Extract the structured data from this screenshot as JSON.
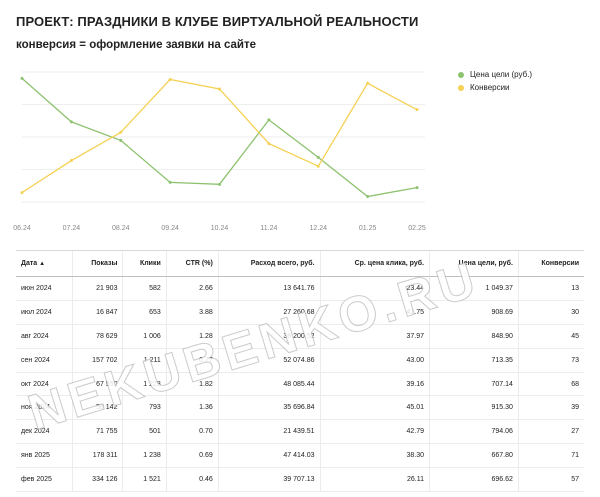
{
  "header": {
    "title": "ПРОЕКТ: ПРАЗДНИКИ В КЛУБЕ ВИРТУАЛЬНОЙ РЕАЛЬНОСТИ",
    "subtitle": "конверсия = оформление заявки на сайте"
  },
  "chart_data": {
    "type": "line",
    "categories": [
      "06.24",
      "07.24",
      "08.24",
      "09.24",
      "10.24",
      "11.24",
      "12.24",
      "01.25",
      "02.25"
    ],
    "series": [
      {
        "name": "Цена цели (руб.)",
        "color": "#8dc26f",
        "values": [
          1049.37,
          908.69,
          848.9,
          713.35,
          707.14,
          915.3,
          794.06,
          667.8,
          696.62
        ]
      },
      {
        "name": "Конверсии",
        "color": "#f5d155",
        "values": [
          13,
          30,
          45,
          73,
          68,
          39,
          27,
          71,
          57
        ]
      }
    ],
    "legend_position": "top-right",
    "grid": true
  },
  "table": {
    "columns": [
      "Дата",
      "Показы",
      "Клики",
      "CTR (%)",
      "Расход всего, руб.",
      "Ср. цена клика, руб.",
      "Цена цели, руб.",
      "Конверсии"
    ],
    "sort_indicator": "▲",
    "rows": [
      [
        "июн 2024",
        "21 903",
        "582",
        "2.66",
        "13 641.76",
        "23.44",
        "1 049.37",
        "13"
      ],
      [
        "июл 2024",
        "16 847",
        "653",
        "3.88",
        "27 260.68",
        "41.75",
        "908.69",
        "30"
      ],
      [
        "авг 2024",
        "78 629",
        "1 006",
        "1.28",
        "38 200.52",
        "37.97",
        "848.90",
        "45"
      ],
      [
        "сен 2024",
        "157 702",
        "1 211",
        "0.77",
        "52 074.86",
        "43.00",
        "713.35",
        "73"
      ],
      [
        "окт 2024",
        "67 550",
        "1 228",
        "1.82",
        "48 085.44",
        "39.16",
        "707.14",
        "68"
      ],
      [
        "ноя 2024",
        "58 142",
        "793",
        "1.36",
        "35 696.84",
        "45.01",
        "915.30",
        "39"
      ],
      [
        "дек 2024",
        "71 755",
        "501",
        "0.70",
        "21 439.51",
        "42.79",
        "794.06",
        "27"
      ],
      [
        "янв 2025",
        "178 311",
        "1 238",
        "0.69",
        "47 414.03",
        "38.30",
        "667.80",
        "71"
      ],
      [
        "фев 2025",
        "334 126",
        "1 521",
        "0.46",
        "39 707.13",
        "26.11",
        "696.62",
        "57"
      ]
    ]
  },
  "watermark": "NEKUBENKO.RU"
}
